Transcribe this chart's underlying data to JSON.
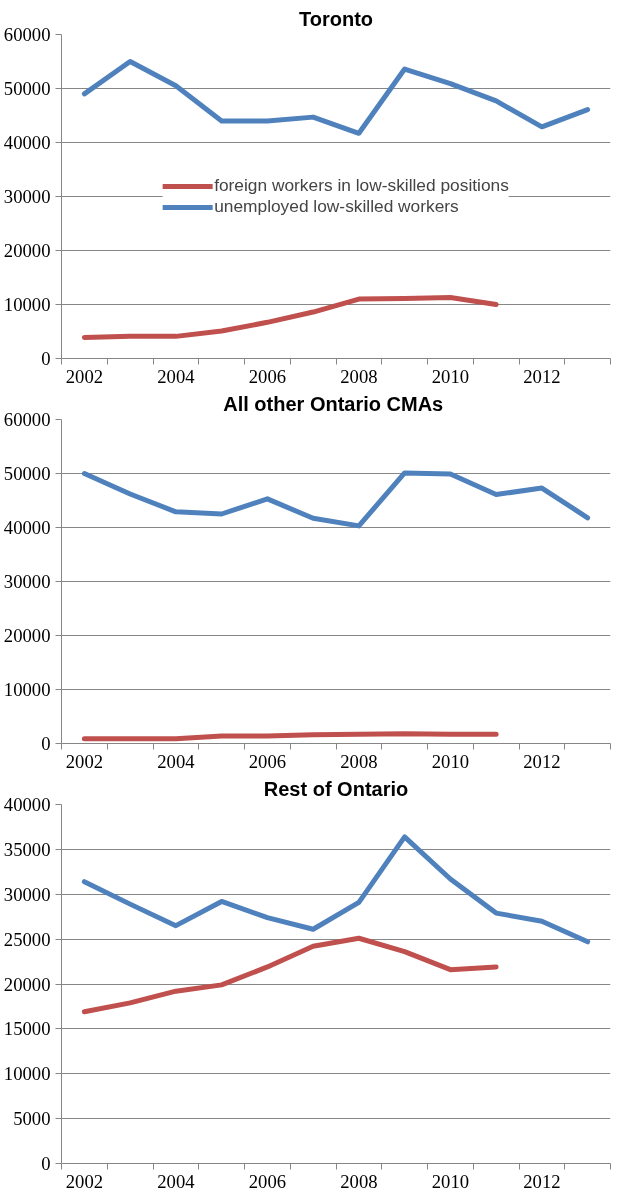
{
  "chart_data": [
    {
      "type": "line",
      "title": "Toronto",
      "categories": [
        "2002",
        null,
        "2004",
        null,
        "2006",
        null,
        "2008",
        null,
        "2010",
        null,
        "2012",
        null
      ],
      "ylim": [
        0,
        60000
      ],
      "yticks": [
        0,
        10000,
        20000,
        30000,
        40000,
        50000,
        60000
      ],
      "grid": "y",
      "legend": "center",
      "series": [
        {
          "name": "foreign workers in low-skilled positions",
          "color": "#c0504d",
          "values": [
            3900,
            4100,
            4100,
            5100,
            6700,
            8600,
            11000,
            11100,
            11300,
            10000,
            null,
            null
          ]
        },
        {
          "name": "unemployed low-skilled workers",
          "color": "#4f81bd",
          "values": [
            49000,
            55000,
            50500,
            44000,
            44000,
            44700,
            41700,
            53600,
            50900,
            47700,
            42900,
            46100
          ]
        }
      ]
    },
    {
      "type": "line",
      "title": "All other  Ontario CMAs",
      "categories": [
        "2002",
        null,
        "2004",
        null,
        "2006",
        null,
        "2008",
        null,
        "2010",
        null,
        "2012",
        null
      ],
      "ylim": [
        0,
        60000
      ],
      "yticks": [
        0,
        10000,
        20000,
        30000,
        40000,
        50000,
        60000
      ],
      "grid": "y",
      "series": [
        {
          "color": "#c0504d",
          "values": [
            900,
            900,
            900,
            1400,
            1400,
            1600,
            1700,
            1800,
            1700,
            1700,
            null,
            null
          ]
        },
        {
          "color": "#4f81bd",
          "values": [
            50000,
            46200,
            42900,
            42500,
            45300,
            41700,
            40300,
            50100,
            49900,
            46100,
            47300,
            41800
          ]
        }
      ]
    },
    {
      "type": "line",
      "title": "Rest of Ontario",
      "categories": [
        "2002",
        null,
        "2004",
        null,
        "2006",
        null,
        "2008",
        null,
        "2010",
        null,
        "2012",
        null
      ],
      "ylim": [
        0,
        40000
      ],
      "yticks": [
        0,
        5000,
        10000,
        15000,
        20000,
        25000,
        30000,
        35000,
        40000
      ],
      "grid": "y",
      "series": [
        {
          "color": "#c0504d",
          "values": [
            16900,
            17900,
            19200,
            19900,
            21900,
            24200,
            25100,
            23600,
            21600,
            21900,
            null,
            null
          ]
        },
        {
          "color": "#4f81bd",
          "values": [
            31400,
            28900,
            26500,
            29200,
            27400,
            26100,
            29100,
            36400,
            31700,
            27900,
            27000,
            24700
          ]
        }
      ]
    }
  ]
}
